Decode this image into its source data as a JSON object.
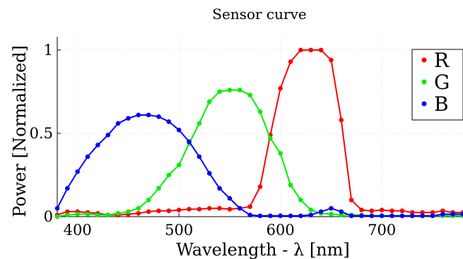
{
  "chart_data": {
    "type": "line",
    "title": "Sensor curve",
    "xlabel": "Wavelength - λ [nm]",
    "ylabel": "Power [Normalized]",
    "xlim": [
      380,
      780
    ],
    "ylim": [
      0,
      1.08
    ],
    "grid": true,
    "legend_position": "top-right",
    "x_ticks": [
      400,
      500,
      600,
      700
    ],
    "x_tick_labels": [
      "400",
      "500",
      "600",
      "700"
    ],
    "y_ticks": [
      0,
      0.5,
      1
    ],
    "y_tick_labels": [
      "0",
      "0.5",
      "1"
    ],
    "x": [
      380,
      390,
      400,
      410,
      420,
      430,
      440,
      450,
      460,
      470,
      480,
      490,
      500,
      510,
      520,
      530,
      540,
      550,
      560,
      570,
      580,
      590,
      600,
      610,
      620,
      630,
      640,
      650,
      660,
      670,
      680,
      690,
      700,
      710,
      720,
      730,
      740,
      750,
      760,
      770,
      780
    ],
    "series": [
      {
        "name": "R",
        "color": "#ff0000",
        "values": [
          0.01,
          0.03,
          0.03,
          0.025,
          0.02,
          0.01,
          0.01,
          0.015,
          0.02,
          0.03,
          0.035,
          0.035,
          0.04,
          0.045,
          0.045,
          0.05,
          0.05,
          0.045,
          0.05,
          0.06,
          0.18,
          0.49,
          0.77,
          0.93,
          1.0,
          1.0,
          1.0,
          0.94,
          0.58,
          0.1,
          0.04,
          0.035,
          0.04,
          0.035,
          0.035,
          0.025,
          0.025,
          0.025,
          0.035,
          0.025,
          0.025
        ]
      },
      {
        "name": "G",
        "color": "#00ee00",
        "values": [
          0.0,
          0.01,
          0.015,
          0.015,
          0.01,
          0.01,
          0.02,
          0.03,
          0.05,
          0.1,
          0.17,
          0.25,
          0.31,
          0.44,
          0.56,
          0.69,
          0.75,
          0.76,
          0.76,
          0.73,
          0.63,
          0.47,
          0.38,
          0.19,
          0.1,
          0.04,
          0.02,
          0.015,
          0.01,
          0.01,
          0.01,
          0.005,
          0.005,
          0.005,
          0.005,
          0.005,
          0.005,
          0.005,
          0.005,
          0.005,
          0.005
        ]
      },
      {
        "name": "B",
        "color": "#0000ff",
        "values": [
          0.05,
          0.17,
          0.27,
          0.36,
          0.43,
          0.49,
          0.56,
          0.59,
          0.61,
          0.61,
          0.6,
          0.57,
          0.52,
          0.45,
          0.36,
          0.26,
          0.17,
          0.11,
          0.05,
          0.01,
          0.005,
          0.005,
          0.005,
          0.005,
          0.005,
          0.01,
          0.03,
          0.05,
          0.03,
          0.005,
          0.005,
          0.005,
          0.005,
          0.005,
          0.005,
          0.005,
          0.005,
          0.005,
          0.015,
          0.015,
          0.015
        ]
      }
    ]
  }
}
